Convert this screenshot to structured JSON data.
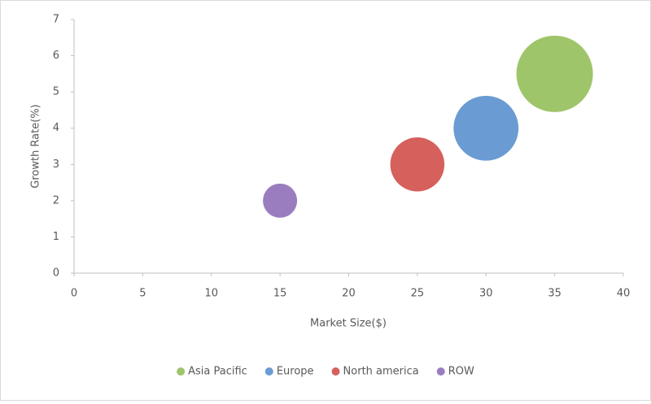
{
  "chart_data": {
    "type": "bubble",
    "x_label": "Market Size($)",
    "y_label": "Growth Rate(%)",
    "xlim": [
      0,
      40
    ],
    "xticks": [
      0,
      5,
      10,
      15,
      20,
      25,
      30,
      35,
      40
    ],
    "ylim": [
      0,
      7
    ],
    "yticks": [
      0,
      1,
      2,
      3,
      4,
      5,
      6,
      7
    ],
    "grid": false,
    "legend": "bottom",
    "series": [
      {
        "name": "Asia Pacific",
        "color": "#9fc56a",
        "x": [
          35
        ],
        "values": [
          5.5
        ],
        "sizes": [
          50
        ]
      },
      {
        "name": "Europe",
        "color": "#6b9bd3",
        "x": [
          30
        ],
        "values": [
          4
        ],
        "sizes": [
          36
        ]
      },
      {
        "name": "North america",
        "color": "#d6605c",
        "x": [
          25
        ],
        "values": [
          3
        ],
        "sizes": [
          25
        ]
      },
      {
        "name": "ROW",
        "color": "#9a7dbf",
        "x": [
          15
        ],
        "values": [
          2
        ],
        "sizes": [
          10
        ]
      }
    ]
  }
}
